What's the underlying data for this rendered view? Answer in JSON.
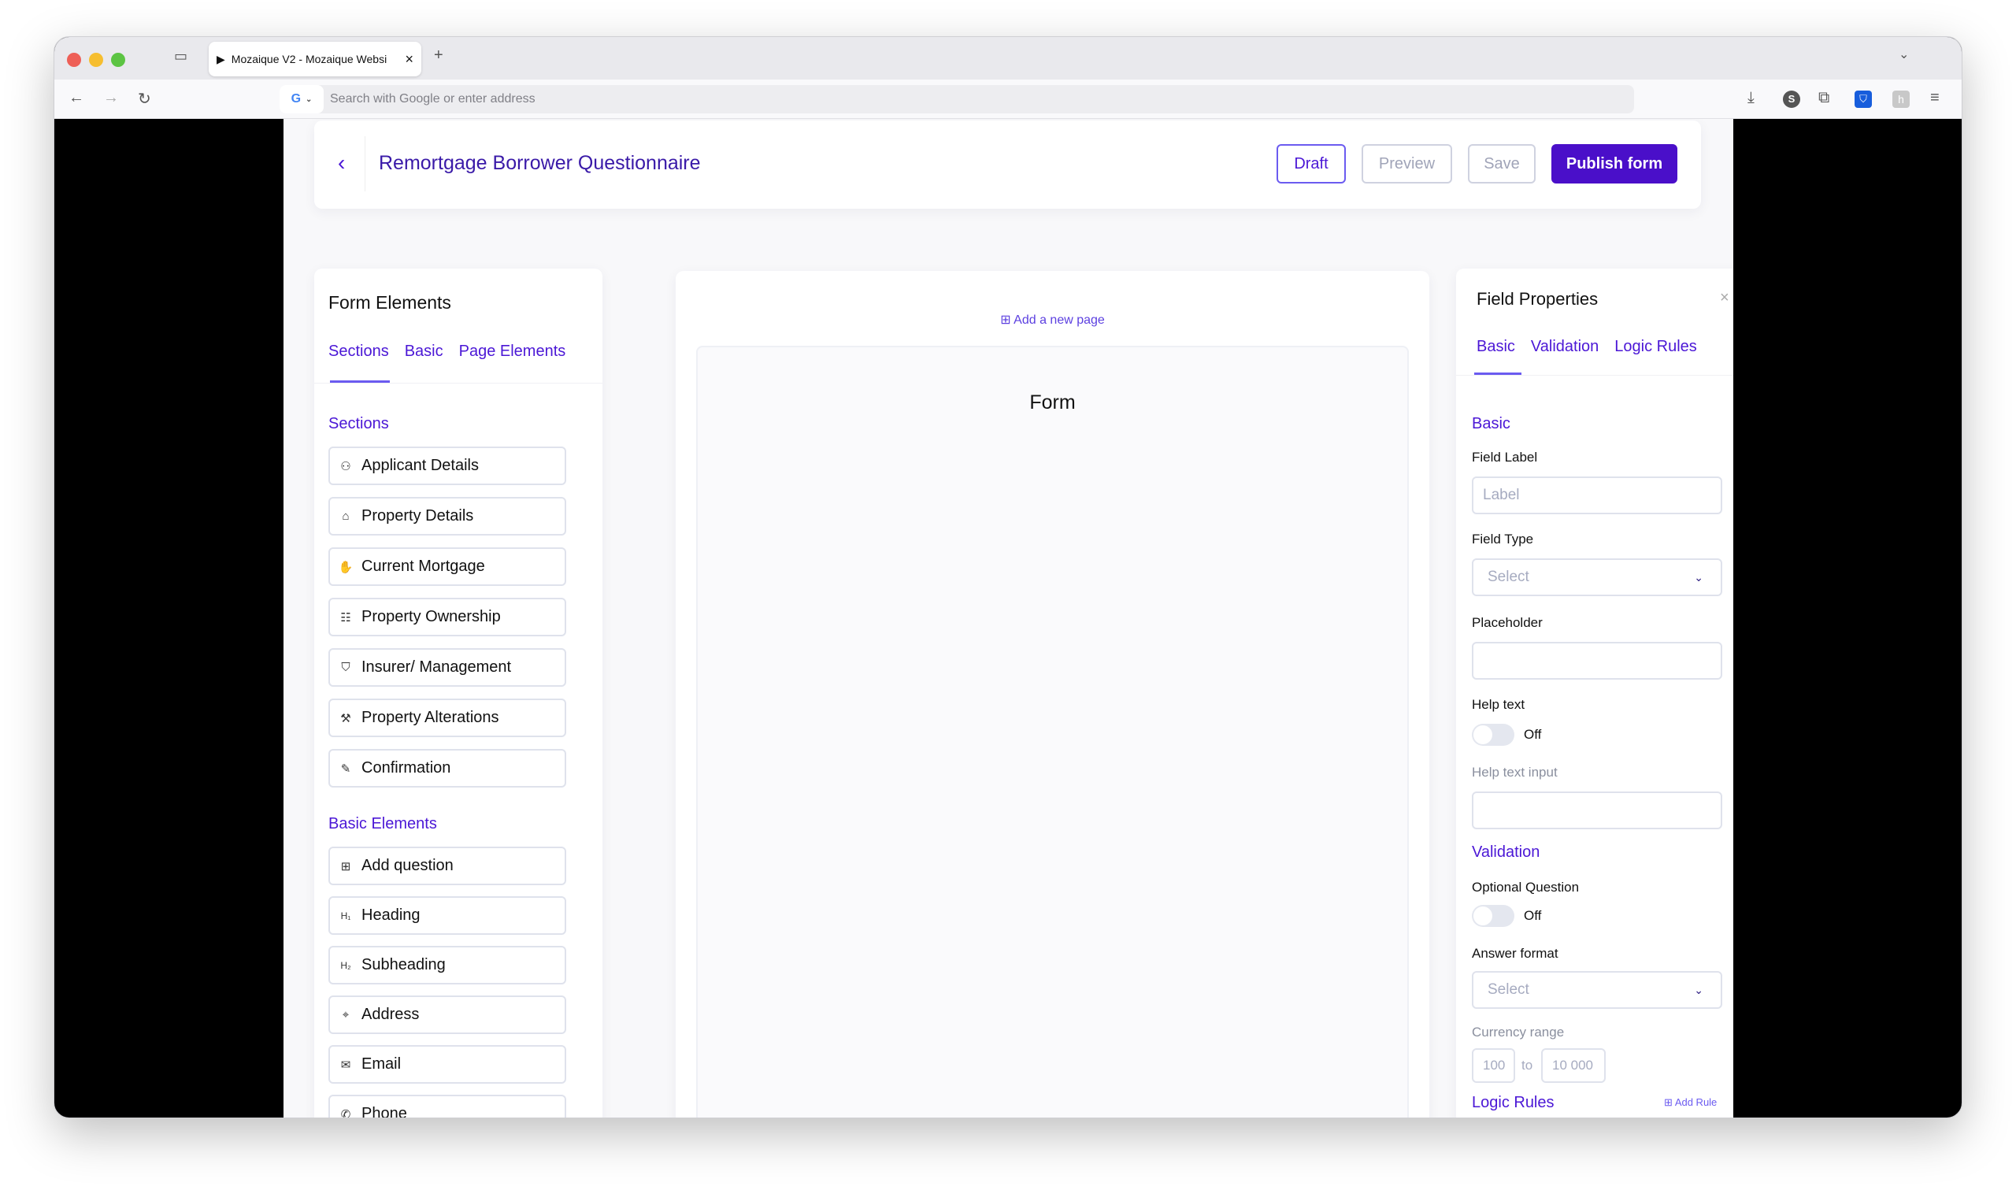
{
  "browser": {
    "tab_title": "Mozaique V2 - Mozaique Websi",
    "tab_close": "×",
    "new_tab": "+",
    "address_placeholder": "Search with Google or enter address",
    "icons": [
      "back-icon",
      "forward-icon",
      "reload-icon",
      "download-icon",
      "s-extension-icon",
      "extensions-icon",
      "bitwarden-icon",
      "h-extension-icon",
      "menu-icon"
    ]
  },
  "header": {
    "back": "‹",
    "title": "Remortgage Borrower Questionnaire",
    "buttons": {
      "draft": "Draft",
      "preview": "Preview",
      "save": "Save",
      "publish": "Publish form"
    }
  },
  "left": {
    "title": "Form Elements",
    "tabs": [
      "Sections",
      "Basic",
      "Page Elements"
    ],
    "active_tab": "Sections",
    "sections_title": "Sections",
    "sections": [
      {
        "label": "Applicant Details",
        "icon": "user-icon"
      },
      {
        "label": "Property Details",
        "icon": "home-icon"
      },
      {
        "label": "Current Mortgage",
        "icon": "hand-coins-icon"
      },
      {
        "label": "Property Ownership",
        "icon": "scroll-icon"
      },
      {
        "label": "Insurer/ Management",
        "icon": "shield-icon"
      },
      {
        "label": "Property Alterations",
        "icon": "hammer-icon"
      },
      {
        "label": "Confirmation",
        "icon": "pen-icon"
      }
    ],
    "basic_title": "Basic Elements",
    "basic": [
      {
        "label": "Add question",
        "icon": "plus-square-icon"
      },
      {
        "label": "Heading",
        "icon": "h1-icon"
      },
      {
        "label": "Subheading",
        "icon": "h2-icon"
      },
      {
        "label": "Address",
        "icon": "map-pin-icon"
      },
      {
        "label": "Email",
        "icon": "mail-icon"
      },
      {
        "label": "Phone",
        "icon": "phone-icon"
      }
    ]
  },
  "center": {
    "add_page": "Add a new page",
    "form_title": "Form"
  },
  "right": {
    "title": "Field Properties",
    "close": "×",
    "tabs": [
      "Basic",
      "Validation",
      "Logic Rules"
    ],
    "active_tab": "Basic",
    "basic_title": "Basic",
    "field_label": "Field Label",
    "field_label_placeholder": "Label",
    "field_type": "Field Type",
    "field_type_value": "Select",
    "placeholder": "Placeholder",
    "help_text": "Help text",
    "help_text_state": "Off",
    "help_text_input": "Help text input",
    "validation_title": "Validation",
    "optional_question": "Optional Question",
    "optional_state": "Off",
    "answer_format": "Answer format",
    "answer_format_value": "Select",
    "currency_range": "Currency range",
    "range_min": "100",
    "range_to": "to",
    "range_max": "10 000",
    "logic_title": "Logic Rules",
    "add_rule": "Add Rule"
  },
  "colors": {
    "accent": "#4b17d6",
    "tab_underline": "#6b5bf0"
  }
}
